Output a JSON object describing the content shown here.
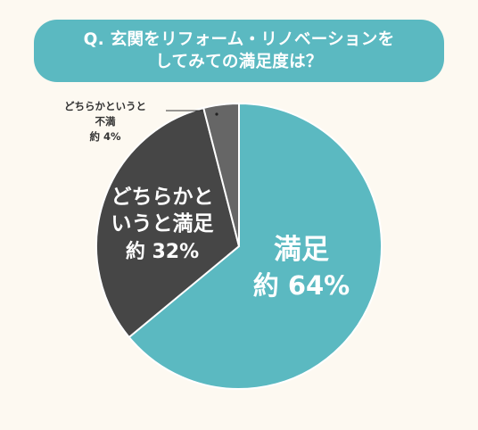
{
  "question": {
    "line1": "Q. 玄関をリフォーム・リノベーションを",
    "line2": "してみての満足度は？"
  },
  "colors": {
    "banner": "#5bb9c1",
    "background": "#fdf9f1",
    "satisfied": "#5bb9c1",
    "somewhat_satisfied": "#464646",
    "somewhat_unsatisfied": "#666666",
    "border": "#ffffff"
  },
  "chart_data": {
    "type": "pie",
    "title": "Q. 玄関をリフォーム・リノベーションを してみての満足度は？",
    "slices": [
      {
        "key": "satisfied",
        "value": 64,
        "label_lines": [
          "満足",
          "約 64%"
        ]
      },
      {
        "key": "somewhat_satisfied",
        "value": 32,
        "label_lines": [
          "どちらかと",
          "いうと満足",
          "約 32%"
        ]
      },
      {
        "key": "somewhat_unsatisfied",
        "value": 4,
        "label_lines": [
          "どちらかというと",
          "不満",
          "約 4%"
        ]
      }
    ]
  }
}
